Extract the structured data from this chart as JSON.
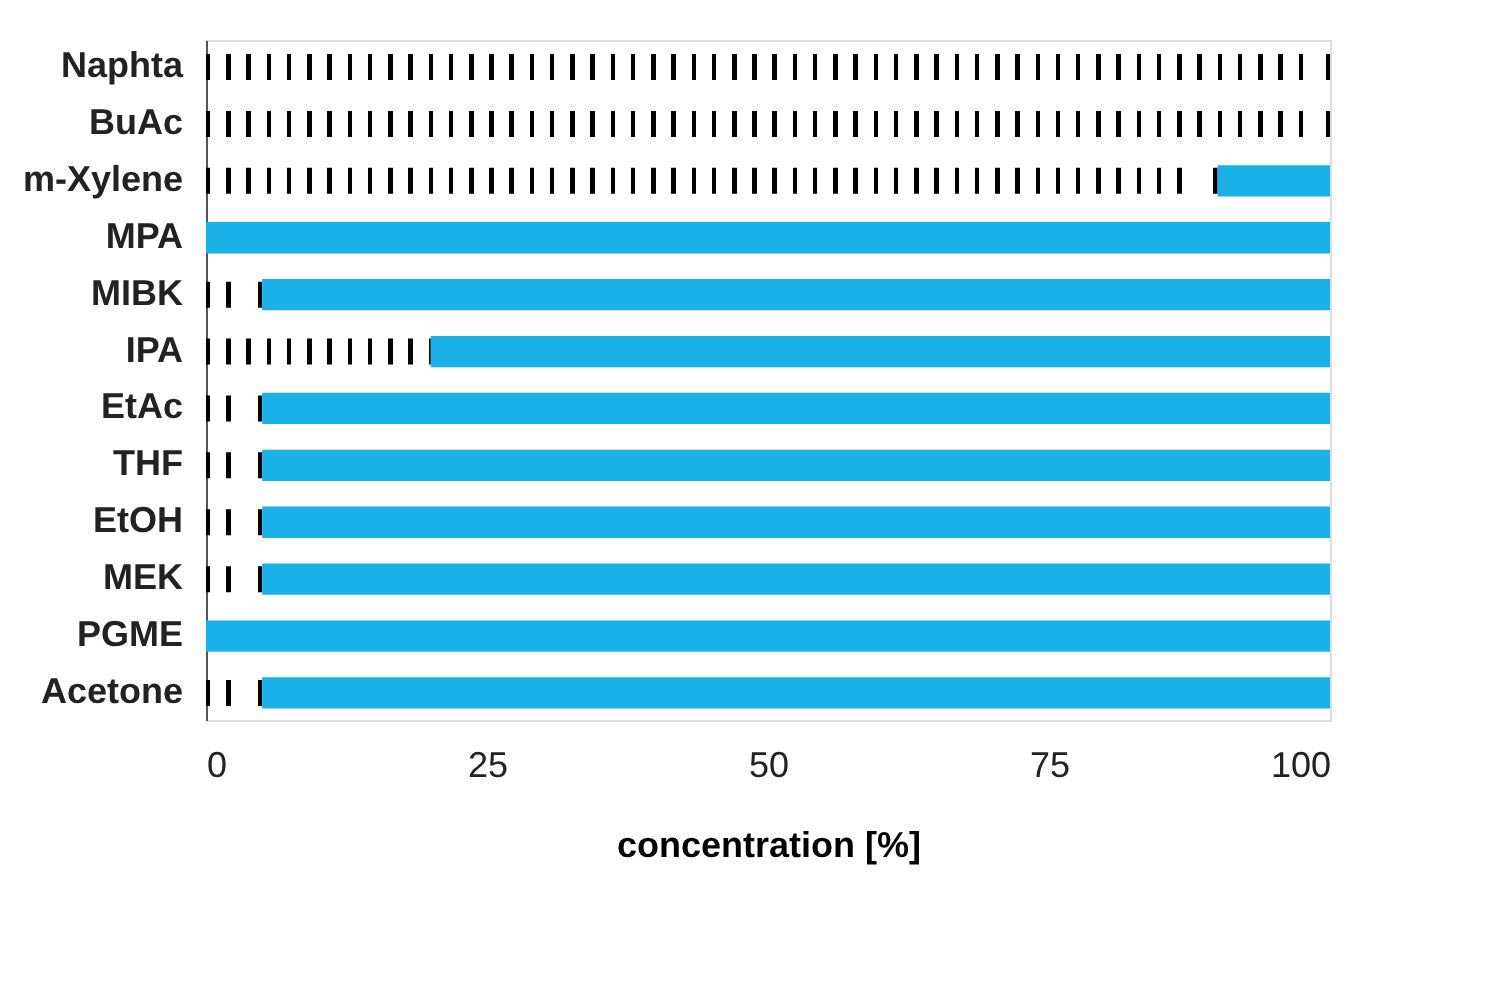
{
  "chart_data": {
    "type": "bar",
    "orientation": "horizontal",
    "stacked": true,
    "xlabel": "concentration [%]",
    "categories": [
      "Naphta",
      "BuAc",
      "m-Xylene",
      "MPA",
      "MIBK",
      "IPA",
      "EtAc",
      "THF",
      "EtOH",
      "MEK",
      "PGME",
      "Acetone"
    ],
    "series": [
      {
        "color": "#000000",
        "line_style": "dotted",
        "values": [
          100,
          100,
          90,
          0,
          5,
          20,
          5,
          5,
          5,
          5,
          0,
          5
        ]
      },
      {
        "color": "#1ab0e8",
        "values": [
          0,
          0,
          10,
          100,
          95,
          80,
          95,
          95,
          95,
          95,
          100,
          95
        ]
      }
    ],
    "xlim": [
      0,
      100
    ],
    "xticks": [
      0,
      25,
      50,
      75,
      100
    ]
  }
}
